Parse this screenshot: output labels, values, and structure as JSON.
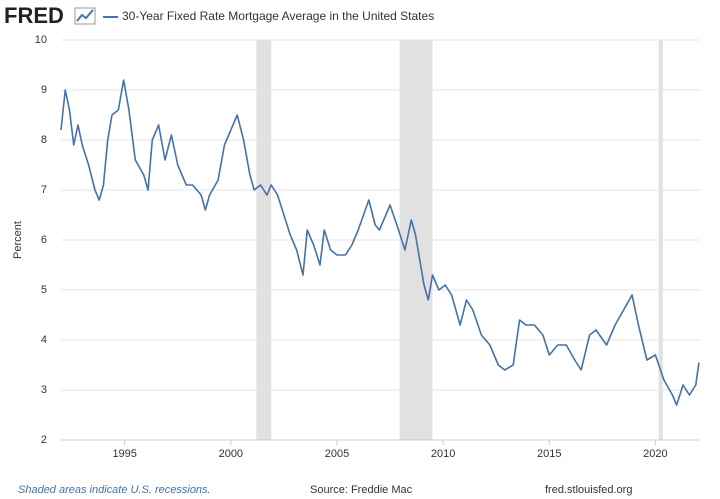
{
  "brand": "FRED",
  "chart_data": {
    "type": "line",
    "y_label": "Percent",
    "xlim": [
      1992,
      2022.1
    ],
    "xticks": [
      1995,
      2000,
      2005,
      2010,
      2015,
      2020
    ],
    "ylim": [
      2,
      10
    ],
    "yticks": [
      2,
      3,
      4,
      5,
      6,
      7,
      8,
      9,
      10
    ],
    "grid": true,
    "recessions": [
      [
        2001.2,
        2001.9
      ],
      [
        2007.95,
        2009.5
      ],
      [
        2020.15,
        2020.35
      ]
    ],
    "recession_color": "#e1e1e1",
    "x": [
      1992.0,
      1992.2,
      1992.4,
      1992.6,
      1992.8,
      1993.0,
      1993.3,
      1993.6,
      1993.8,
      1994.0,
      1994.2,
      1994.4,
      1994.7,
      1994.95,
      1995.2,
      1995.5,
      1995.9,
      1996.1,
      1996.3,
      1996.6,
      1996.9,
      1997.2,
      1997.5,
      1997.9,
      1998.2,
      1998.6,
      1998.8,
      1999.0,
      1999.4,
      1999.7,
      2000.0,
      2000.3,
      2000.6,
      2000.9,
      2001.1,
      2001.4,
      2001.7,
      2001.9,
      2002.2,
      2002.5,
      2002.8,
      2003.1,
      2003.4,
      2003.6,
      2003.9,
      2004.2,
      2004.4,
      2004.7,
      2005.0,
      2005.4,
      2005.7,
      2006.0,
      2006.5,
      2006.8,
      2007.0,
      2007.5,
      2007.9,
      2008.2,
      2008.5,
      2008.7,
      2008.9,
      2009.1,
      2009.3,
      2009.5,
      2009.8,
      2010.1,
      2010.4,
      2010.8,
      2011.1,
      2011.4,
      2011.8,
      2012.2,
      2012.6,
      2012.9,
      2013.3,
      2013.6,
      2013.9,
      2014.3,
      2014.7,
      2015.0,
      2015.4,
      2015.8,
      2016.2,
      2016.5,
      2016.9,
      2017.2,
      2017.7,
      2018.1,
      2018.5,
      2018.9,
      2019.2,
      2019.6,
      2020.0,
      2020.4,
      2020.8,
      2021.0,
      2021.3,
      2021.6,
      2021.9,
      2022.05
    ],
    "series": [
      {
        "name": "30-Year Fixed Rate Mortgage Average in the United States",
        "color": "#4572a7",
        "values": [
          8.2,
          9.0,
          8.6,
          7.9,
          8.3,
          7.9,
          7.5,
          7.0,
          6.8,
          7.1,
          8.0,
          8.5,
          8.6,
          9.2,
          8.6,
          7.6,
          7.3,
          7.0,
          8.0,
          8.3,
          7.6,
          8.1,
          7.5,
          7.1,
          7.1,
          6.9,
          6.6,
          6.9,
          7.2,
          7.9,
          8.2,
          8.5,
          8.0,
          7.3,
          7.0,
          7.1,
          6.9,
          7.1,
          6.9,
          6.5,
          6.1,
          5.8,
          5.3,
          6.2,
          5.9,
          5.5,
          6.2,
          5.8,
          5.7,
          5.7,
          5.9,
          6.2,
          6.8,
          6.3,
          6.2,
          6.7,
          6.2,
          5.8,
          6.4,
          6.1,
          5.6,
          5.1,
          4.8,
          5.3,
          5.0,
          5.1,
          4.9,
          4.3,
          4.8,
          4.6,
          4.1,
          3.9,
          3.5,
          3.4,
          3.5,
          4.4,
          4.3,
          4.3,
          4.1,
          3.7,
          3.9,
          3.9,
          3.6,
          3.4,
          4.1,
          4.2,
          3.9,
          4.3,
          4.6,
          4.9,
          4.3,
          3.6,
          3.7,
          3.2,
          2.9,
          2.7,
          3.1,
          2.9,
          3.1,
          3.55
        ]
      }
    ]
  },
  "footer": {
    "note": "Shaded areas indicate U.S. recessions.",
    "source": "Source: Freddie Mac",
    "url": "fred.stlouisfed.org"
  }
}
